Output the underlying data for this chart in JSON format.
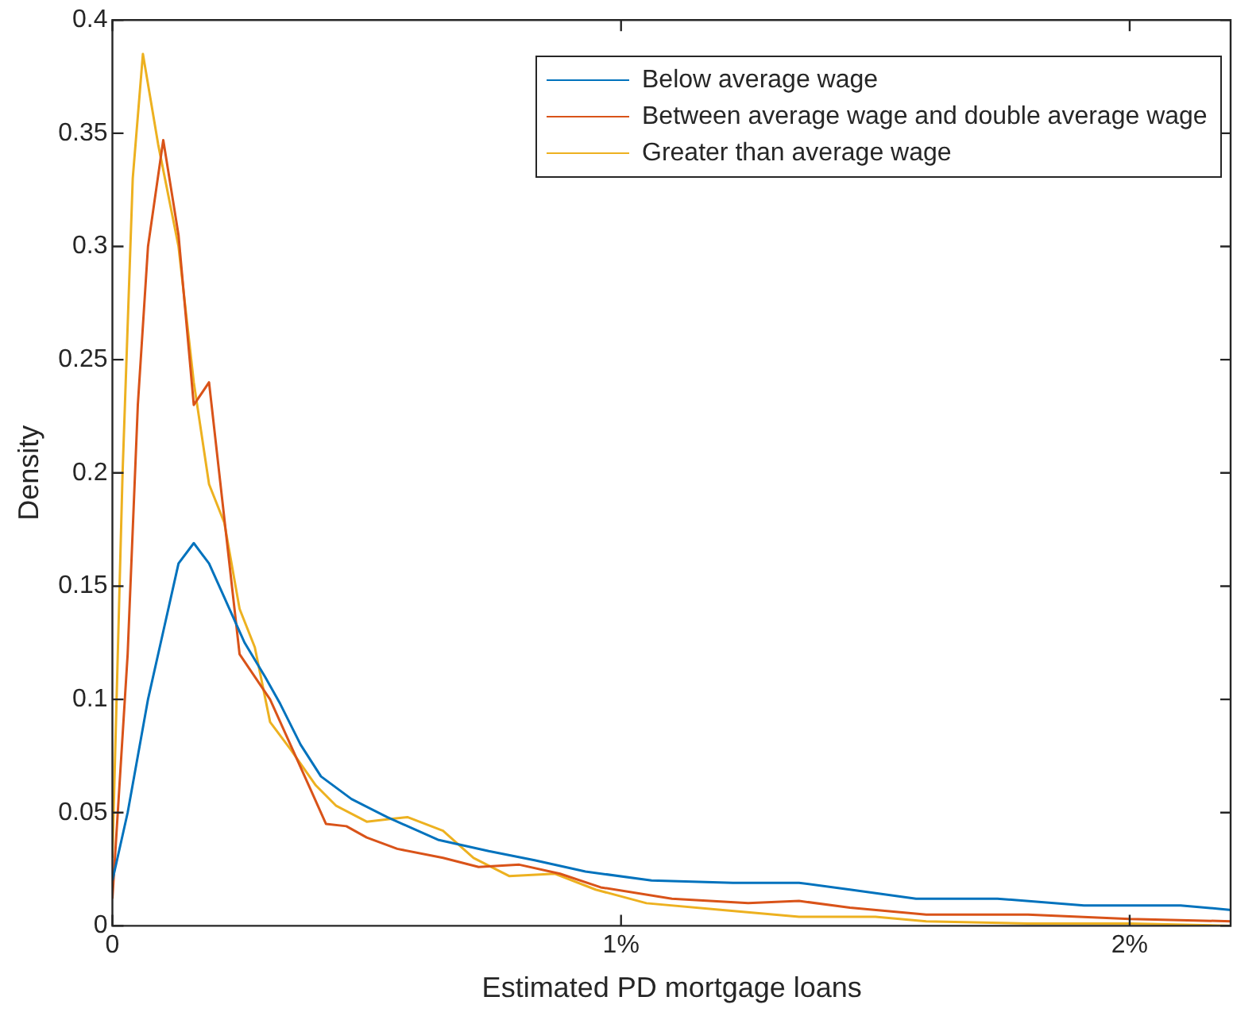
{
  "chart_data": {
    "type": "line",
    "xlabel": "Estimated PD mortgage loans",
    "ylabel": "Density",
    "xlim": [
      0,
      2.2
    ],
    "xticks": [
      0,
      {
        "value": 1,
        "label": "1%"
      },
      {
        "value": 2,
        "label": "2%"
      }
    ],
    "ylim": [
      0,
      0.4
    ],
    "yticks": [
      0,
      0.05,
      0.1,
      0.15,
      0.2,
      0.25,
      0.3,
      0.35,
      0.4
    ],
    "grid": false,
    "legend": "top right",
    "marker": "none",
    "line_style": "solid",
    "series": [
      {
        "name": "Below average wage",
        "color": "#0072bd",
        "x": [
          0,
          0.03,
          0.07,
          0.1,
          0.13,
          0.16,
          0.19,
          0.22,
          0.26,
          0.3,
          0.33,
          0.37,
          0.41,
          0.47,
          0.54,
          0.64,
          0.74,
          0.83,
          0.93,
          1.06,
          1.22,
          1.35,
          1.45,
          1.58,
          1.74,
          1.91,
          2.1,
          2.2
        ],
        "values": [
          0.02,
          0.05,
          0.1,
          0.13,
          0.16,
          0.169,
          0.16,
          0.145,
          0.125,
          0.11,
          0.098,
          0.08,
          0.066,
          0.056,
          0.048,
          0.038,
          0.033,
          0.029,
          0.024,
          0.02,
          0.019,
          0.019,
          0.016,
          0.012,
          0.012,
          0.009,
          0.009,
          0.007
        ]
      },
      {
        "name": "Between average wage and double average wage",
        "color": "#d95319",
        "x": [
          0,
          0.03,
          0.05,
          0.07,
          0.1,
          0.13,
          0.16,
          0.19,
          0.22,
          0.25,
          0.28,
          0.31,
          0.35,
          0.39,
          0.42,
          0.46,
          0.5,
          0.56,
          0.65,
          0.72,
          0.8,
          0.88,
          0.96,
          1.1,
          1.25,
          1.35,
          1.45,
          1.6,
          1.8,
          2.0,
          2.2
        ],
        "values": [
          0.012,
          0.12,
          0.23,
          0.3,
          0.347,
          0.305,
          0.23,
          0.24,
          0.18,
          0.12,
          0.11,
          0.1,
          0.08,
          0.06,
          0.045,
          0.044,
          0.039,
          0.034,
          0.03,
          0.026,
          0.027,
          0.023,
          0.017,
          0.012,
          0.01,
          0.011,
          0.008,
          0.005,
          0.005,
          0.003,
          0.002
        ]
      },
      {
        "name": "Greater than average wage",
        "color": "#edb120",
        "x": [
          0,
          0.02,
          0.04,
          0.06,
          0.09,
          0.13,
          0.16,
          0.19,
          0.22,
          0.25,
          0.28,
          0.31,
          0.35,
          0.4,
          0.44,
          0.5,
          0.54,
          0.58,
          0.65,
          0.71,
          0.78,
          0.87,
          0.95,
          1.05,
          1.2,
          1.35,
          1.5,
          1.6,
          1.8,
          2.0,
          2.2
        ],
        "values": [
          0.03,
          0.2,
          0.33,
          0.385,
          0.345,
          0.3,
          0.24,
          0.195,
          0.178,
          0.14,
          0.123,
          0.09,
          0.078,
          0.062,
          0.053,
          0.046,
          0.047,
          0.048,
          0.042,
          0.03,
          0.022,
          0.023,
          0.016,
          0.01,
          0.007,
          0.004,
          0.004,
          0.002,
          0.001,
          0.001,
          0
        ]
      }
    ]
  }
}
